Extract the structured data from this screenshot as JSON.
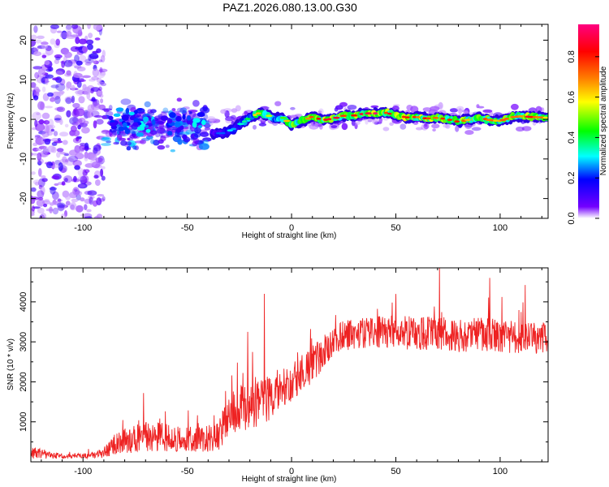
{
  "title": "PAZ1.2026.080.13.00.G30",
  "colorbar": {
    "label": "Normalized spectral amplitude",
    "ticks": [
      "0.0",
      "0.2",
      "0.4",
      "0.6",
      "0.8"
    ],
    "tick_values": [
      0.0,
      0.2,
      0.4,
      0.6,
      0.8
    ],
    "range": [
      0.0,
      0.96
    ],
    "colormap": [
      "#ffffff",
      "#7300ff",
      "#0000ff",
      "#00ffff",
      "#00ff00",
      "#ffff00",
      "#ff8000",
      "#ff0000",
      "#ff0080"
    ]
  },
  "chart_data": [
    {
      "type": "heatmap",
      "title": "PAZ1.2026.080.13.00.G30",
      "xlabel": "Height of straight line (km)",
      "ylabel": "Frequency (Hz)",
      "xlim": [
        -125,
        123
      ],
      "ylim": [
        -25,
        24
      ],
      "x_ticks": [
        -100,
        -50,
        0,
        50,
        100
      ],
      "y_ticks": [
        -20,
        -10,
        0,
        10,
        20
      ],
      "x_tick_labels": [
        "-100",
        "-50",
        "0",
        "50",
        "100"
      ],
      "y_tick_labels": [
        "-20",
        "-10",
        "0",
        "10",
        "20"
      ],
      "ridge": {
        "x": [
          -38,
          -33,
          -28,
          -24,
          -20,
          -16,
          -12,
          -8,
          -4,
          0,
          5,
          10,
          15,
          20,
          25,
          30,
          35,
          40,
          45,
          50,
          55,
          60,
          65,
          70,
          75,
          80,
          85,
          90,
          95,
          100,
          105,
          110,
          115,
          123
        ],
        "frequency": [
          -3.5,
          -3.5,
          -2.5,
          -1,
          0.5,
          1.5,
          1.2,
          0.2,
          0.4,
          -1.5,
          -0.5,
          0.7,
          -0.2,
          0.2,
          0.9,
          1.0,
          1.5,
          1.5,
          1.7,
          1.0,
          0.5,
          0.6,
          0.2,
          0.4,
          0.0,
          -0.6,
          -0.1,
          0.5,
          -0.2,
          -0.4,
          0.5,
          0.8,
          0.6,
          0.4
        ],
        "amplitude": [
          0.2,
          0.25,
          0.3,
          0.35,
          0.45,
          0.7,
          0.6,
          0.55,
          0.5,
          0.8,
          0.75,
          0.8,
          0.85,
          0.9,
          0.8,
          0.85,
          0.9,
          0.92,
          0.88,
          0.85,
          0.9,
          0.8,
          0.85,
          0.78,
          0.82,
          0.86,
          0.7,
          0.8,
          0.75,
          0.7,
          0.8,
          0.72,
          0.9,
          0.6
        ]
      },
      "scatter_regions": [
        {
          "x_range": [
            -125,
            -90
          ],
          "freq_range": [
            -25,
            24
          ],
          "amplitude_range": [
            0.02,
            0.15
          ]
        },
        {
          "x_range": [
            -90,
            -40
          ],
          "freq_range": [
            -10,
            6
          ],
          "amplitude_range": [
            0.05,
            0.3
          ]
        },
        {
          "x_range": [
            -40,
            123
          ],
          "freq_range": [
            -4,
            5
          ],
          "amplitude_range": [
            0.02,
            0.12
          ]
        }
      ]
    },
    {
      "type": "line",
      "xlabel": "Height of straight line (km)",
      "ylabel": "SNR (10 * v/v)",
      "xlim": [
        -125,
        123
      ],
      "ylim": [
        0,
        4850
      ],
      "x_ticks": [
        -100,
        -50,
        0,
        50,
        100
      ],
      "y_ticks": [
        1000,
        2000,
        3000,
        4000
      ],
      "x_tick_labels": [
        "-100",
        "-50",
        "0",
        "50",
        "100"
      ],
      "y_tick_labels": [
        "1000",
        "2000",
        "3000",
        "4000"
      ],
      "color": "#ee2222",
      "envelope": {
        "x": [
          -125,
          -110,
          -100,
          -95,
          -90,
          -85,
          -80,
          -70,
          -60,
          -50,
          -40,
          -35,
          -30,
          -25,
          -20,
          -15,
          -10,
          -5,
          0,
          5,
          10,
          15,
          20,
          25,
          30,
          40,
          50,
          60,
          70,
          80,
          90,
          100,
          110,
          123
        ],
        "mean": [
          220,
          140,
          150,
          170,
          230,
          420,
          520,
          620,
          610,
          560,
          580,
          620,
          1150,
          1350,
          1450,
          1400,
          1650,
          1850,
          2000,
          2150,
          2400,
          2750,
          3000,
          3150,
          3200,
          3250,
          3250,
          3200,
          3250,
          3150,
          3200,
          3150,
          3100,
          3050
        ],
        "noise": [
          140,
          60,
          60,
          80,
          130,
          260,
          320,
          380,
          360,
          320,
          330,
          380,
          500,
          580,
          640,
          620,
          560,
          520,
          480,
          460,
          460,
          420,
          390,
          380,
          380,
          400,
          420,
          420,
          430,
          420,
          420,
          410,
          400,
          380
        ]
      },
      "spikes": [
        {
          "x": -71,
          "y": 1720
        },
        {
          "x": -26,
          "y": 2480
        },
        {
          "x": -21,
          "y": 3250
        },
        {
          "x": -13,
          "y": 4200
        },
        {
          "x": 71,
          "y": 4850
        },
        {
          "x": 95,
          "y": 4600
        },
        {
          "x": 112,
          "y": 4420
        }
      ]
    }
  ]
}
